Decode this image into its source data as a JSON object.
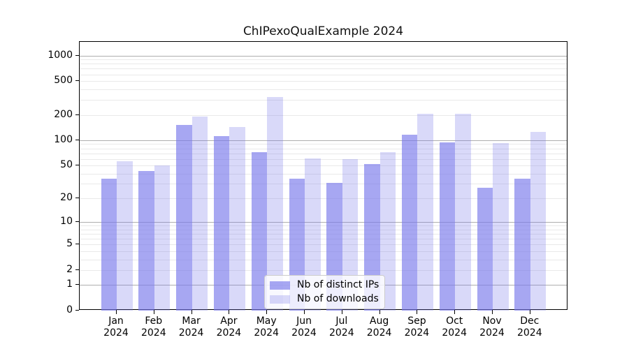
{
  "chart_data": {
    "type": "bar",
    "title": "ChIPexoQualExample 2024",
    "y_scale": "log10(value+1)",
    "categories": [
      "Jan",
      "Feb",
      "Mar",
      "Apr",
      "May",
      "Jun",
      "Jul",
      "Aug",
      "Sep",
      "Oct",
      "Nov",
      "Dec"
    ],
    "year_label": "2024",
    "series": [
      {
        "name": "Nb of distinct IPs",
        "color": "rgba(120,120,235,0.65)",
        "values": [
          35,
          43,
          151,
          112,
          72,
          35,
          31,
          52,
          116,
          95,
          27,
          35
        ]
      },
      {
        "name": "Nb of downloads",
        "color": "rgba(120,120,235,0.28)",
        "values": [
          56,
          50,
          191,
          144,
          323,
          61,
          60,
          72,
          207,
          207,
          92,
          125
        ]
      }
    ],
    "y_ticks": [
      0,
      1,
      2,
      5,
      10,
      20,
      50,
      100,
      200,
      500,
      1000
    ],
    "ylim": [
      0,
      1448
    ],
    "grid": true,
    "legend_position": "lower-center"
  },
  "colors": {
    "bar_base": "#7878eb",
    "major_gridline": "#aeaeae",
    "minor_gridline": "#e9e9e9",
    "axis": "#000000",
    "legend_border": "#cccccc"
  }
}
